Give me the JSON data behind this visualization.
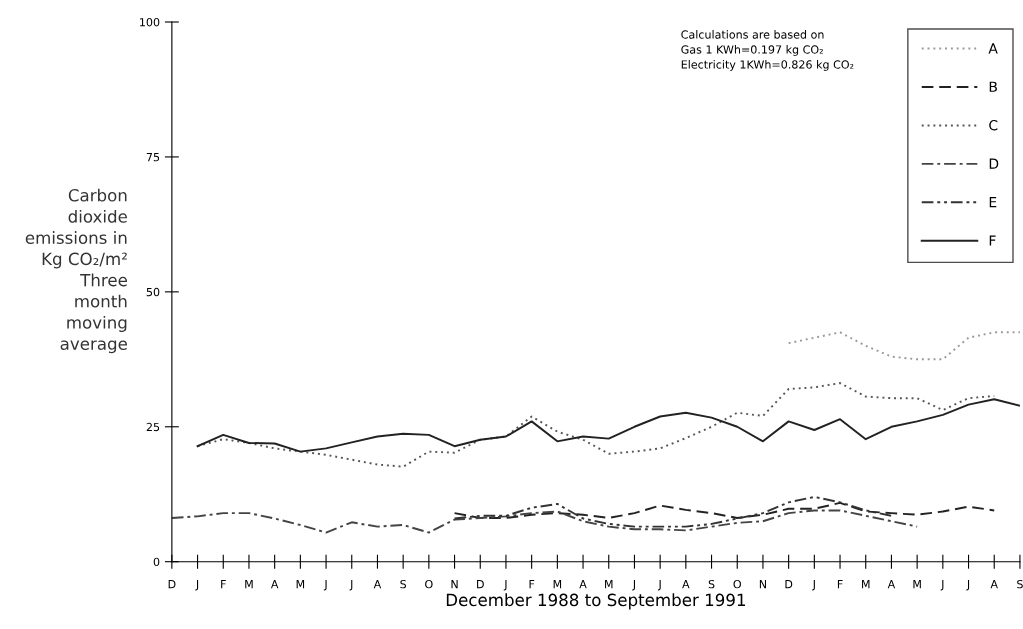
{
  "chart_data": {
    "type": "line",
    "ylabel": "Carbon\ndioxide\nemissions in\nKg CO₂/m²\nThree\nmonth\nmoving\naverage",
    "xlabel": "December 1988 to September 1991",
    "annotations": [
      "Calculations are based on\nGas 1 KWh=0.197 kg CO₂\nElectricity 1KWh=0.826 kg CO₂"
    ],
    "categories": [
      "D",
      "J",
      "F",
      "M",
      "A",
      "M",
      "J",
      "J",
      "A",
      "S",
      "O",
      "N",
      "D",
      "J",
      "F",
      "M",
      "A",
      "M",
      "J",
      "J",
      "A",
      "S",
      "O",
      "N",
      "D",
      "J",
      "F",
      "M",
      "A",
      "M",
      "J",
      "J",
      "A",
      "S"
    ],
    "ylim": [
      0,
      100
    ],
    "yticks": [
      0,
      25,
      50,
      75,
      100
    ],
    "grid": false,
    "legend": "top right",
    "series": [
      {
        "name": "A",
        "color": "#9a9a9a",
        "line_style": "dotted",
        "values": [
          null,
          null,
          null,
          null,
          null,
          null,
          null,
          null,
          null,
          null,
          null,
          null,
          null,
          null,
          null,
          null,
          null,
          null,
          null,
          null,
          null,
          null,
          null,
          null,
          40.5,
          41.5,
          42.5,
          40,
          38,
          37.5,
          37.5,
          41.5,
          42.5,
          42.5
        ]
      },
      {
        "name": "B",
        "color": "#222222",
        "line_style": "dashed",
        "values": [
          null,
          null,
          null,
          null,
          null,
          null,
          null,
          null,
          null,
          null,
          null,
          9,
          8.1,
          8.1,
          8.7,
          9,
          8.7,
          8.1,
          9,
          10.4,
          9.6,
          9,
          8.1,
          8.7,
          9.8,
          9.8,
          10.9,
          9.3,
          9,
          8.7,
          9.3,
          10.2,
          9.5,
          null
        ]
      },
      {
        "name": "C",
        "color": "#555555",
        "line_style": "dotted",
        "values": [
          null,
          21.4,
          22.7,
          22,
          21,
          20.4,
          19.8,
          18.9,
          18,
          17.6,
          20.4,
          20.2,
          22.6,
          23.2,
          26.9,
          24.1,
          22.6,
          20,
          20.4,
          21,
          22.9,
          25,
          27.6,
          27,
          32,
          32.3,
          33.1,
          30.6,
          30.3,
          30.3,
          28.1,
          30.3,
          30.7,
          null
        ]
      },
      {
        "name": "D",
        "color": "#444444",
        "line_style": "dashdot",
        "values": [
          8.1,
          8.4,
          9,
          9,
          8,
          6.8,
          5.4,
          7.3,
          6.5,
          6.8,
          5.4,
          7.8,
          8.1,
          8.4,
          9,
          9.3,
          7.5,
          6.5,
          6,
          6,
          5.8,
          6.5,
          7.2,
          7.5,
          9,
          9.5,
          9.5,
          8.5,
          7.5,
          6.5,
          null,
          null,
          null,
          null
        ]
      },
      {
        "name": "E",
        "color": "#333333",
        "line_style": "dashdotdot",
        "values": [
          null,
          null,
          null,
          null,
          null,
          null,
          null,
          null,
          null,
          null,
          null,
          8,
          8.5,
          8.5,
          10,
          10.7,
          8,
          7,
          6.5,
          6.5,
          6.5,
          7,
          8,
          9,
          11,
          12,
          11,
          9.5,
          8.5,
          null,
          null,
          null,
          null,
          null
        ]
      },
      {
        "name": "F",
        "color": "#222222",
        "line_style": "solid",
        "values": [
          null,
          21.4,
          23.5,
          22,
          21.9,
          20.4,
          21,
          22.1,
          23.2,
          23.7,
          23.5,
          21.4,
          22.6,
          23.2,
          26,
          22.3,
          23.2,
          22.8,
          25,
          26.9,
          27.6,
          26.7,
          25,
          22.3,
          26,
          24.4,
          26.4,
          22.7,
          25,
          26,
          27.2,
          29.1,
          30.1,
          28.9
        ]
      }
    ]
  }
}
